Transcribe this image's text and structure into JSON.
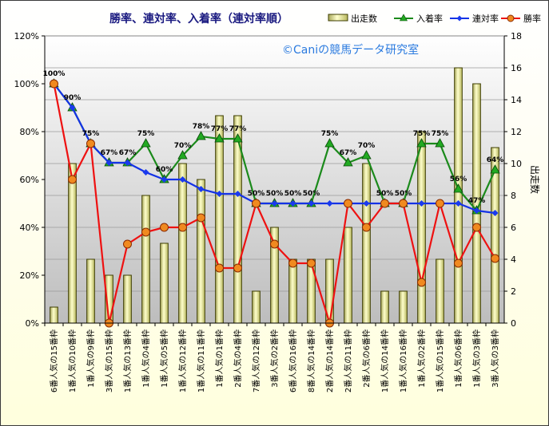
{
  "chart_data": {
    "type": "bar",
    "title": "勝率、連対率、入着率（連対率順）",
    "watermark": "©Caniの競馬データ研究室",
    "ylabel_right": "出走数",
    "ylim_left": [
      0,
      1.2
    ],
    "ylim_right": [
      0,
      18
    ],
    "left_ticks": [
      "0%",
      "20%",
      "40%",
      "60%",
      "80%",
      "100%",
      "120%"
    ],
    "right_ticks": [
      "0",
      "2",
      "4",
      "6",
      "8",
      "10",
      "12",
      "14",
      "16",
      "18"
    ],
    "grid": true,
    "legend_position": "top-right",
    "categories": [
      "6番人気の15番枠",
      "1番人気の10番枠",
      "1番人気の9番枠",
      "3番人気の15番枠",
      "1番人気の13番枠",
      "1番人気の4番枠",
      "1番人気の5番枠",
      "1番人気の12番枠",
      "1番人気の11番枠",
      "1番人気の1番枠",
      "2番人気の4番枠",
      "7番人気の12番枠",
      "3番人気の2番枠",
      "6番人気の16番枠",
      "8番人気の14番枠",
      "2番人気の14番枠",
      "2番人気の11番枠",
      "2番人気の6番枠",
      "1番人気の14番枠",
      "1番人気の16番枠",
      "1番人気の2番枠",
      "1番人気の15番枠",
      "1番人気の6番枠",
      "1番人気の3番枠",
      "3番人気の3番枠"
    ],
    "series": [
      {
        "name": "出走数",
        "kind": "bar",
        "axis": "right",
        "color": "#e6e69a",
        "values": [
          1,
          10,
          4,
          3,
          3,
          8,
          5,
          10,
          9,
          13,
          13,
          2,
          6,
          4,
          4,
          4,
          6,
          10,
          2,
          2,
          12,
          4,
          16,
          15,
          11
        ]
      },
      {
        "name": "入着率",
        "kind": "line",
        "axis": "left",
        "color": "#1b8a1b",
        "values": [
          1.0,
          0.9,
          0.75,
          0.67,
          0.67,
          0.75,
          0.6,
          0.7,
          0.78,
          0.77,
          0.77,
          0.5,
          0.5,
          0.5,
          0.5,
          0.75,
          0.67,
          0.7,
          0.5,
          0.5,
          0.75,
          0.75,
          0.56,
          0.47,
          0.64
        ],
        "labels": [
          "100%",
          "90%",
          "75%",
          "67%",
          "67%",
          "75%",
          "60%",
          "70%",
          "78%",
          "77%",
          "77%",
          "50%",
          "50%",
          "50%",
          "50%",
          "75%",
          "67%",
          "70%",
          "50%",
          "50%",
          "75%",
          "75%",
          "56%",
          "47%",
          "64%"
        ]
      },
      {
        "name": "連対率",
        "kind": "line",
        "axis": "left",
        "color": "#1432e6",
        "values": [
          1.0,
          0.9,
          0.75,
          0.67,
          0.67,
          0.63,
          0.6,
          0.6,
          0.56,
          0.54,
          0.54,
          0.5,
          0.5,
          0.5,
          0.5,
          0.5,
          0.5,
          0.5,
          0.5,
          0.5,
          0.5,
          0.5,
          0.5,
          0.47,
          0.46
        ]
      },
      {
        "name": "勝率",
        "kind": "line",
        "axis": "left",
        "color": "#ee1111",
        "values": [
          1.0,
          0.6,
          0.75,
          0.0,
          0.33,
          0.38,
          0.4,
          0.4,
          0.44,
          0.23,
          0.23,
          0.5,
          0.33,
          0.25,
          0.25,
          0.0,
          0.5,
          0.4,
          0.5,
          0.5,
          0.17,
          0.5,
          0.25,
          0.4,
          0.27
        ]
      }
    ]
  }
}
